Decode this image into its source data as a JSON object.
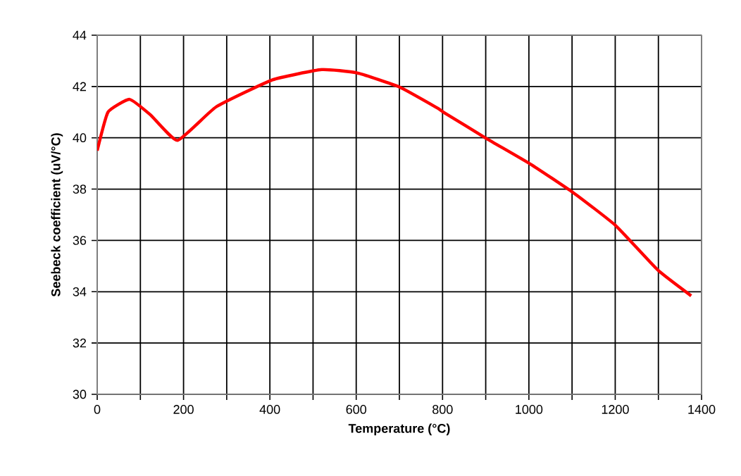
{
  "chart_data": {
    "type": "line",
    "xlabel": "Temperature (°C)",
    "ylabel": "Seebeck coefficient (uV/°C)",
    "x": [
      0,
      25,
      75,
      123,
      186,
      275,
      406,
      520,
      602,
      700,
      788,
      804,
      902,
      1005,
      1103,
      1201,
      1299,
      1376
    ],
    "series": [
      {
        "color": "#ff0000",
        "values": [
          39.5,
          41.0,
          41.5,
          40.9,
          39.9,
          41.2,
          42.26,
          42.66,
          42.53,
          41.98,
          41.16,
          40.98,
          39.97,
          38.96,
          37.86,
          36.58,
          34.84,
          33.84
        ]
      }
    ],
    "xlim": [
      0,
      1400
    ],
    "ylim": [
      30,
      44
    ],
    "xticks": [
      0,
      {
        "value": 100,
        "label": null
      },
      200,
      {
        "value": 300,
        "label": null
      },
      400,
      {
        "value": 500,
        "label": null
      },
      600,
      {
        "value": 700,
        "label": null
      },
      800,
      {
        "value": 900,
        "label": null
      },
      1000,
      {
        "value": 1100,
        "label": null
      },
      1200,
      {
        "value": 1300,
        "label": null
      },
      1400
    ],
    "yticks": [
      30,
      32,
      34,
      36,
      38,
      40,
      42,
      44
    ],
    "grid": true,
    "marker": "none",
    "line_style": "solid"
  }
}
